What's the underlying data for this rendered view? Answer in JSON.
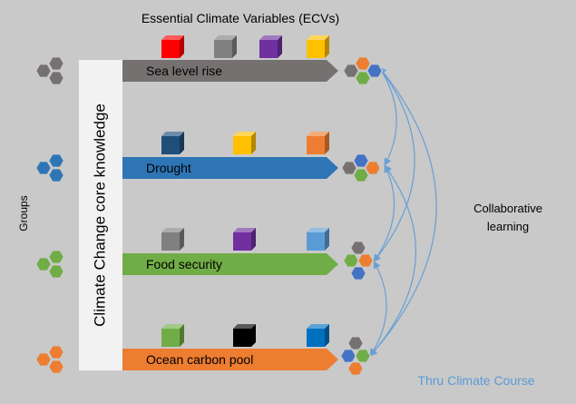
{
  "title": "Essential Climate Variables (ECVs)",
  "core_label": "Climate Change core knowledge",
  "groups_label": "Groups",
  "collab_label_line1": "Collaborative",
  "collab_label_line2": "learning",
  "footer": "Thru Climate Course",
  "colors": {
    "background": "#c9c9c9",
    "core_box": "#f2f2f2",
    "arrow_line": "#6a9fd4",
    "footer_text": "#5b9bd5"
  },
  "bars": [
    {
      "label": "Sea level rise",
      "color": "#767171",
      "cube_colors": [
        "#ff0000",
        "#808080",
        "#7030a0",
        "#ffc000"
      ],
      "left_hex_colors": [
        "#767171",
        "#767171",
        "#767171"
      ],
      "right_hex_colors": [
        "#767171",
        "#ed7d31",
        "#4472c4",
        "#70ad47"
      ]
    },
    {
      "label": "Drought",
      "color": "#2e75b6",
      "cube_colors": [
        "#1f4e79",
        "#ffc000",
        "#ed7d31"
      ],
      "left_hex_colors": [
        "#2e75b6",
        "#2e75b6",
        "#2e75b6"
      ],
      "right_hex_colors": [
        "#767171",
        "#4472c4",
        "#ed7d31",
        "#70ad47"
      ]
    },
    {
      "label": "Food security",
      "color": "#70ad47",
      "cube_colors": [
        "#808080",
        "#7030a0",
        "#5b9bd5"
      ],
      "left_hex_colors": [
        "#70ad47",
        "#70ad47",
        "#70ad47"
      ],
      "right_hex_colors": [
        "#767171",
        "#70ad47",
        "#ed7d31",
        "#4472c4"
      ]
    },
    {
      "label": "Ocean carbon pool",
      "color": "#ed7d31",
      "cube_colors": [
        "#70ad47",
        "#000000",
        "#0070c0"
      ],
      "left_hex_colors": [
        "#ed7d31",
        "#ed7d31",
        "#ed7d31"
      ],
      "right_hex_colors": [
        "#767171",
        "#4472c4",
        "#70ad47",
        "#ed7d31"
      ]
    }
  ]
}
